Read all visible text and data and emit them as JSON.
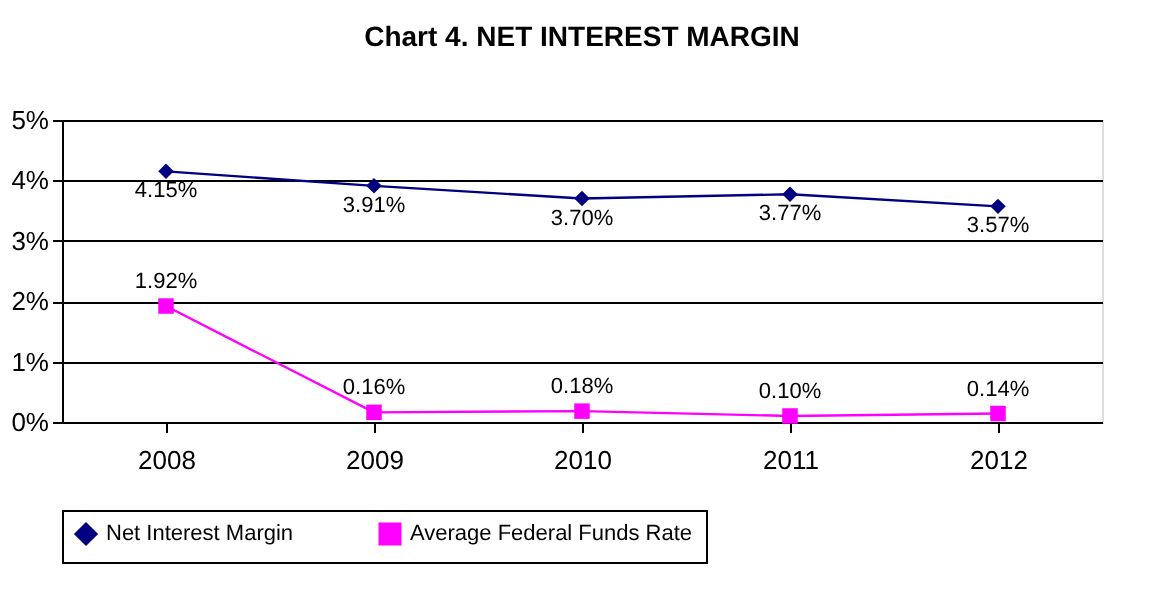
{
  "chart_data": {
    "type": "line",
    "title": "Chart 4. NET INTEREST MARGIN",
    "categories": [
      "2008",
      "2009",
      "2010",
      "2011",
      "2012"
    ],
    "series": [
      {
        "name": "Net Interest Margin",
        "color": "#000080",
        "marker": "diamond",
        "values": [
          4.15,
          3.91,
          3.7,
          3.77,
          3.57
        ],
        "value_labels": [
          "4.15%",
          "3.91%",
          "3.70%",
          "3.77%",
          "3.57%"
        ]
      },
      {
        "name": "Average Federal Funds Rate",
        "color": "#ff00ff",
        "marker": "square",
        "values": [
          1.92,
          0.16,
          0.18,
          0.1,
          0.14
        ],
        "value_labels": [
          "1.92%",
          "0.16%",
          "0.18%",
          "0.10%",
          "0.14%"
        ]
      }
    ],
    "ylim": [
      0,
      5
    ],
    "yticks": [
      {
        "value": 0,
        "label": "0%"
      },
      {
        "value": 1,
        "label": "1%"
      },
      {
        "value": 2,
        "label": "2%"
      },
      {
        "value": 3,
        "label": "3%"
      },
      {
        "value": 4,
        "label": "4%"
      },
      {
        "value": 5,
        "label": "5%"
      }
    ],
    "grid": "y",
    "legend": "bottom",
    "line_style": "solid"
  }
}
